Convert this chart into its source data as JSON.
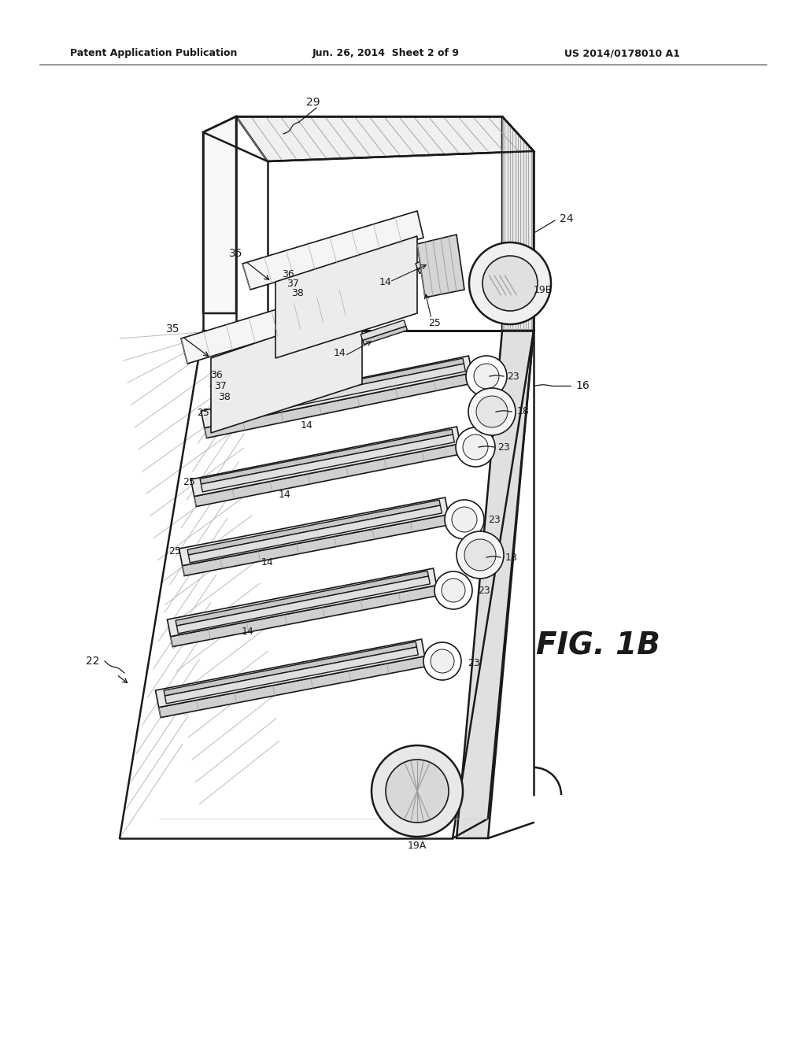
{
  "bg_color": "#ffffff",
  "line_color": "#1a1a1a",
  "header_left": "Patent Application Publication",
  "header_mid": "Jun. 26, 2014  Sheet 2 of 9",
  "header_right": "US 2014/0178010 A1",
  "fig_label": "FIG. 1B"
}
